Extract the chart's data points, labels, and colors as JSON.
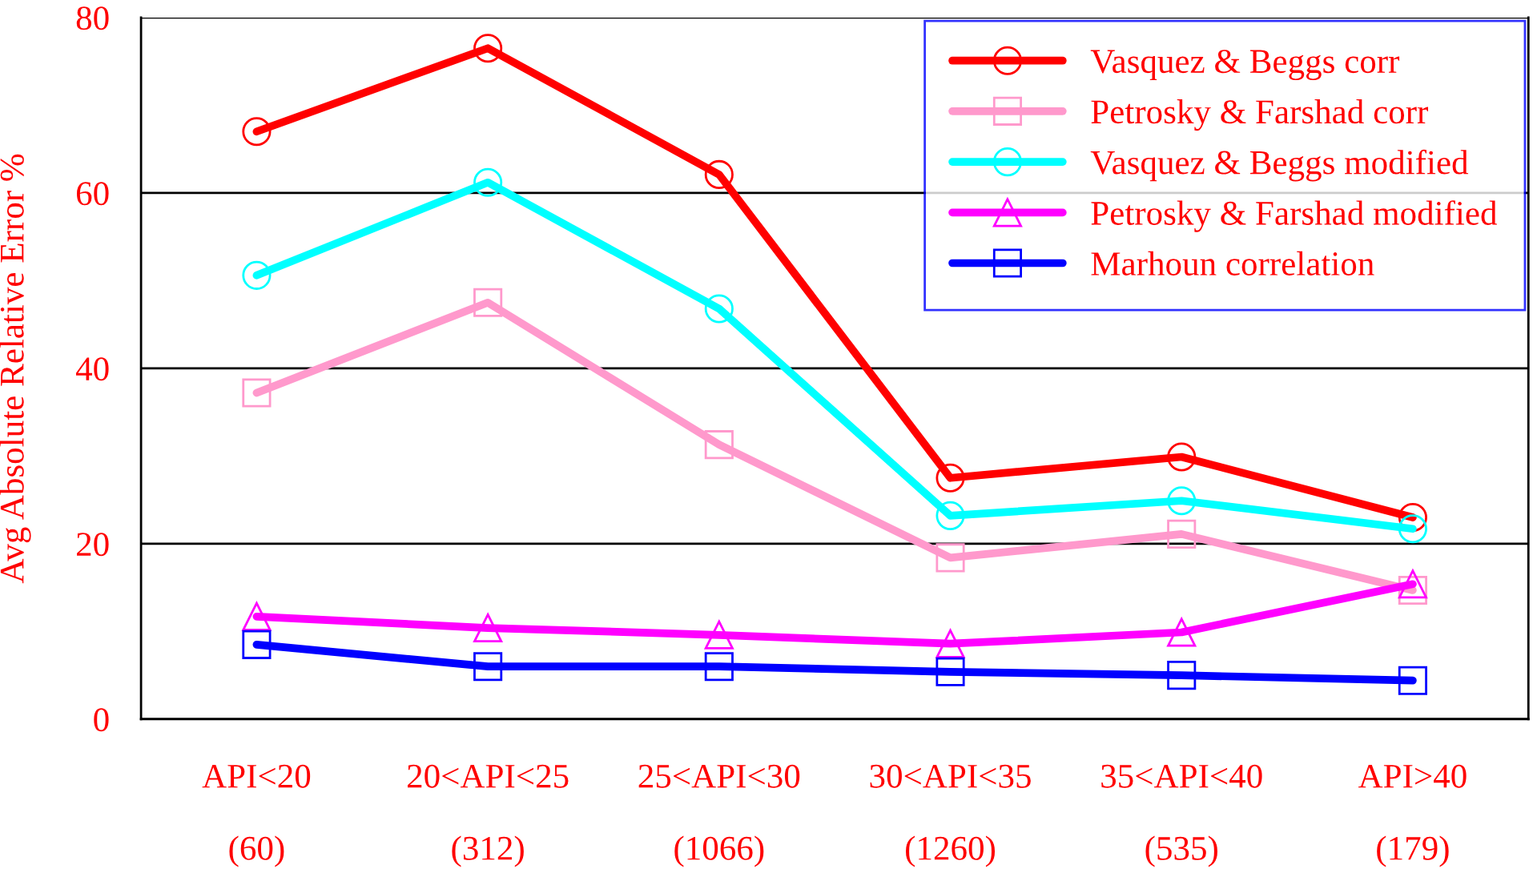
{
  "chart_data": {
    "type": "line",
    "ylabel": "Avg Absolute Relative Error %",
    "categories": [
      "API<20\n\n(60)",
      "20<API<25\n\n(312)",
      "25<API<30\n\n(1066)",
      "30<API<35\n\n(1260)",
      "35<API<40\n\n(535)",
      "API>40\n\n(179)"
    ],
    "series": [
      {
        "name": "Vasquez & Beggs corr",
        "color": "#ff0000",
        "marker": "circle",
        "values": [
          67.0,
          76.5,
          62.1,
          27.5,
          29.9,
          23.0
        ]
      },
      {
        "name": "Petrosky & Farshad corr",
        "color": "#ff99cc",
        "marker": "square",
        "values": [
          37.2,
          47.5,
          31.3,
          18.4,
          21.1,
          14.7
        ]
      },
      {
        "name": "Vasquez & Beggs modified",
        "color": "#00ffff",
        "marker": "circle",
        "values": [
          50.6,
          61.2,
          46.8,
          23.2,
          24.9,
          21.7
        ]
      },
      {
        "name": "Petrosky & Farshad modified",
        "color": "#ff00ff",
        "marker": "triangle",
        "values": [
          11.7,
          10.4,
          9.6,
          8.6,
          9.9,
          15.4
        ]
      },
      {
        "name": "Marhoun correlation",
        "color": "#0000ff",
        "marker": "square",
        "values": [
          8.5,
          6.0,
          6.0,
          5.4,
          5.0,
          4.4
        ]
      }
    ],
    "ylim": [
      0,
      80
    ],
    "yticks": [
      0,
      20,
      40,
      60,
      80
    ],
    "grid": "y",
    "legend": "top right",
    "line_style": "solid"
  }
}
